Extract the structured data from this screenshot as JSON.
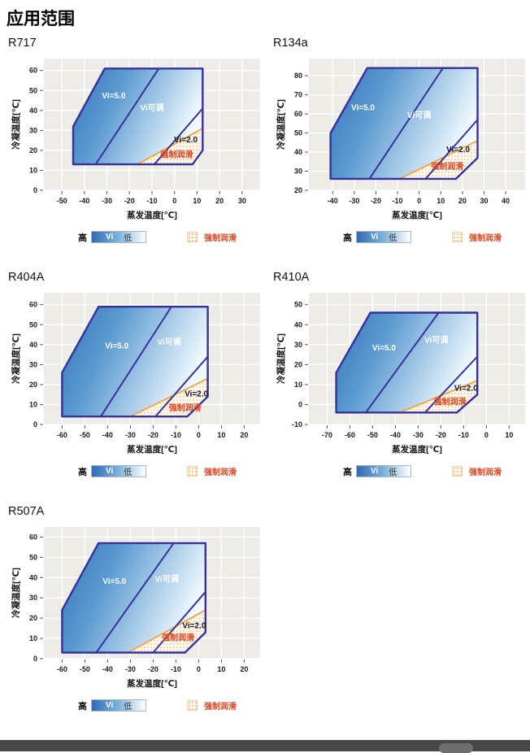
{
  "page": {
    "title": "应用范围"
  },
  "colors": {
    "plot_bg": "#edece7",
    "grid": "#ffffff",
    "region_border": "#37319e",
    "gradient_start": "#3273b8",
    "gradient_mid": "#5c9bd1",
    "gradient_end": "#eef8fe",
    "forced_lube_line": "#f2a43c",
    "forced_region_bg": "#fdf9f0",
    "forced_region_dot": "#eeb168",
    "forced_lube_text": "#e0431f",
    "bottom_bar": "#474747",
    "bottom_handle": "#6d6d6d"
  },
  "legend": {
    "high": "高",
    "vi": "Vi",
    "low": "低",
    "forced": "强制润滑"
  },
  "chart_data": [
    {
      "name": "R717",
      "type": "area",
      "xlabel": "蒸发温度[℃]",
      "ylabel": "冷凝温度[℃]",
      "xlim": [
        -58,
        38
      ],
      "ylim": [
        0,
        66
      ],
      "x_ticks": [
        -50,
        -40,
        -30,
        -20,
        -10,
        0,
        10,
        20,
        30
      ],
      "y_ticks": [
        0,
        10,
        20,
        30,
        40,
        50,
        60
      ],
      "envelope": [
        [
          -45,
          13
        ],
        [
          -45,
          32
        ],
        [
          -31,
          61
        ],
        [
          12.5,
          61
        ],
        [
          12.5,
          20
        ],
        [
          8,
          13
        ]
      ],
      "vi_split_line": [
        [
          -35,
          13
        ],
        [
          -7,
          61
        ]
      ],
      "vi2_line": [
        [
          -9,
          13
        ],
        [
          12.5,
          41
        ]
      ],
      "forced_lube_line": [
        [
          -16.5,
          13
        ],
        [
          12.5,
          31
        ]
      ],
      "forced_lube_region": [
        [
          -16.5,
          13
        ],
        [
          12.5,
          31
        ],
        [
          12.5,
          20
        ],
        [
          8,
          13
        ]
      ],
      "labels": [
        {
          "text": "Vi=5.0",
          "x": -27,
          "y": 46,
          "style": "white"
        },
        {
          "text": "Vi可调",
          "x": -10,
          "y": 40,
          "style": "white"
        },
        {
          "text": "Vi=2.0",
          "x": 5,
          "y": 24,
          "style": "dark"
        },
        {
          "text": "强制润滑",
          "x": 1,
          "y": 16.5,
          "style": "red"
        }
      ]
    },
    {
      "name": "R134a",
      "type": "area",
      "xlabel": "蒸发温度[℃]",
      "ylabel": "冷凝温度[℃]",
      "xlim": [
        -51,
        49
      ],
      "ylim": [
        20,
        89
      ],
      "x_ticks": [
        -40,
        -30,
        -20,
        -10,
        0,
        10,
        20,
        30,
        40
      ],
      "y_ticks": [
        20,
        30,
        40,
        50,
        60,
        70,
        80
      ],
      "envelope": [
        [
          -41,
          26
        ],
        [
          -41,
          50
        ],
        [
          -24,
          84
        ],
        [
          27,
          84
        ],
        [
          27,
          37
        ],
        [
          17,
          26
        ]
      ],
      "vi_split_line": [
        [
          -23,
          26
        ],
        [
          11,
          84
        ]
      ],
      "vi2_line": [
        [
          3,
          26
        ],
        [
          27,
          57
        ]
      ],
      "forced_lube_line": [
        [
          -9,
          26
        ],
        [
          27,
          46
        ]
      ],
      "forced_lube_region": [
        [
          -9,
          26
        ],
        [
          27,
          46
        ],
        [
          27,
          37
        ],
        [
          17,
          26
        ]
      ],
      "labels": [
        {
          "text": "Vi=5.0",
          "x": -26,
          "y": 62,
          "style": "white"
        },
        {
          "text": "Vi可调",
          "x": 0,
          "y": 58,
          "style": "white"
        },
        {
          "text": "Vi=2.0",
          "x": 18,
          "y": 40,
          "style": "dark"
        },
        {
          "text": "强制润滑",
          "x": 13,
          "y": 31,
          "style": "red"
        }
      ]
    },
    {
      "name": "R404A",
      "type": "area",
      "xlabel": "蒸发温度[℃]",
      "ylabel": "冷凝温度[℃]",
      "xlim": [
        -68,
        27
      ],
      "ylim": [
        0,
        66
      ],
      "x_ticks": [
        -60,
        -50,
        -40,
        -30,
        -20,
        -10,
        0,
        10,
        20
      ],
      "y_ticks": [
        0,
        10,
        20,
        30,
        40,
        50,
        60
      ],
      "envelope": [
        [
          -60,
          4
        ],
        [
          -60,
          26
        ],
        [
          -44,
          59
        ],
        [
          4,
          59
        ],
        [
          4,
          14
        ],
        [
          -5,
          4
        ]
      ],
      "vi_split_line": [
        [
          -43,
          4
        ],
        [
          -12,
          59
        ]
      ],
      "vi2_line": [
        [
          -19,
          4
        ],
        [
          4,
          34
        ]
      ],
      "forced_lube_line": [
        [
          -30,
          4
        ],
        [
          4,
          23
        ]
      ],
      "forced_lube_region": [
        [
          -30,
          4
        ],
        [
          4,
          23
        ],
        [
          4,
          14
        ],
        [
          -5,
          4
        ]
      ],
      "labels": [
        {
          "text": "Vi=5.0",
          "x": -36,
          "y": 38,
          "style": "white"
        },
        {
          "text": "Vi可调",
          "x": -13,
          "y": 40,
          "style": "white"
        },
        {
          "text": "Vi=2.0",
          "x": -1,
          "y": 14,
          "style": "dark"
        },
        {
          "text": "强制润滑",
          "x": -6,
          "y": 7,
          "style": "red"
        }
      ]
    },
    {
      "name": "R410A",
      "type": "area",
      "xlabel": "蒸发温度[℃]",
      "ylabel": "冷凝温度[℃]",
      "xlim": [
        -78,
        17
      ],
      "ylim": [
        -10,
        56
      ],
      "x_ticks": [
        -70,
        -60,
        -50,
        -40,
        -30,
        -20,
        -10,
        0,
        10
      ],
      "y_ticks": [
        -10,
        0,
        10,
        20,
        30,
        40,
        50
      ],
      "envelope": [
        [
          -66,
          -4
        ],
        [
          -66,
          16
        ],
        [
          -51,
          46
        ],
        [
          -4,
          46
        ],
        [
          -4,
          5
        ],
        [
          -13,
          -4
        ]
      ],
      "vi_split_line": [
        [
          -53,
          -4
        ],
        [
          -21,
          46
        ]
      ],
      "vi2_line": [
        [
          -27,
          -4
        ],
        [
          -4,
          24
        ]
      ],
      "forced_lube_line": [
        [
          -38,
          -4
        ],
        [
          -4,
          12
        ]
      ],
      "forced_lube_region": [
        [
          -38,
          -4
        ],
        [
          -4,
          12
        ],
        [
          -4,
          5
        ],
        [
          -13,
          -4
        ]
      ],
      "labels": [
        {
          "text": "Vi=5.0",
          "x": -45,
          "y": 27,
          "style": "white"
        },
        {
          "text": "Vi可调",
          "x": -22,
          "y": 31,
          "style": "white"
        },
        {
          "text": "Vi=2.0",
          "x": -9,
          "y": 7,
          "style": "dark"
        },
        {
          "text": "强制润滑",
          "x": -16,
          "y": 0,
          "style": "red"
        }
      ]
    },
    {
      "name": "R507A",
      "type": "area",
      "xlabel": "蒸发温度[℃]",
      "ylabel": "冷凝温度[℃]",
      "xlim": [
        -68,
        27
      ],
      "ylim": [
        0,
        65
      ],
      "x_ticks": [
        -60,
        -50,
        -40,
        -30,
        -20,
        -10,
        0,
        10,
        20
      ],
      "y_ticks": [
        0,
        10,
        20,
        30,
        40,
        50,
        60
      ],
      "envelope": [
        [
          -60,
          3
        ],
        [
          -60,
          24
        ],
        [
          -44,
          57
        ],
        [
          3,
          57
        ],
        [
          3,
          13
        ],
        [
          -6,
          3
        ]
      ],
      "vi_split_line": [
        [
          -45,
          3
        ],
        [
          -11,
          57
        ]
      ],
      "vi2_line": [
        [
          -20,
          3
        ],
        [
          3,
          33
        ]
      ],
      "forced_lube_line": [
        [
          -31,
          3
        ],
        [
          3,
          24
        ]
      ],
      "forced_lube_region": [
        [
          -31,
          3
        ],
        [
          3,
          24
        ],
        [
          3,
          13
        ],
        [
          -6,
          3
        ]
      ],
      "labels": [
        {
          "text": "Vi=5.0",
          "x": -37,
          "y": 37,
          "style": "white"
        },
        {
          "text": "Vi可调",
          "x": -14,
          "y": 38,
          "style": "white"
        },
        {
          "text": "Vi=2.0",
          "x": -2,
          "y": 15,
          "style": "dark"
        },
        {
          "text": "强制润滑",
          "x": -9,
          "y": 9,
          "style": "red"
        }
      ]
    }
  ]
}
